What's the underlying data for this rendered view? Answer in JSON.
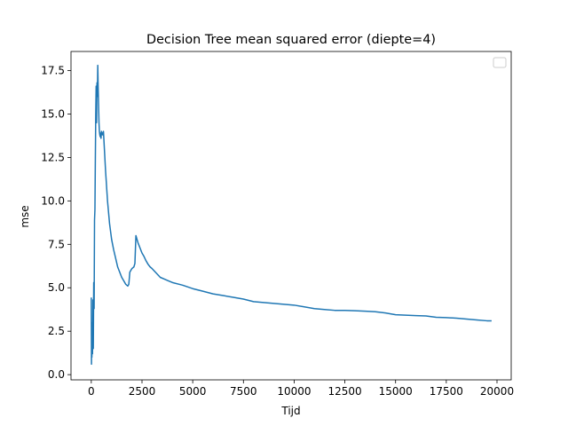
{
  "chart_data": {
    "type": "line",
    "title": "Decision Tree mean squared error (diepte=4)",
    "xlabel": "Tijd",
    "ylabel": "mse",
    "xlim": [
      -1000,
      20700
    ],
    "ylim": [
      -0.3,
      18.6
    ],
    "xticks": [
      0,
      2500,
      5000,
      7500,
      10000,
      12500,
      15000,
      17500,
      20000
    ],
    "xtick_labels": [
      "0",
      "2500",
      "5000",
      "7500",
      "10000",
      "12500",
      "15000",
      "17500",
      "20000"
    ],
    "yticks": [
      0.0,
      2.5,
      5.0,
      7.5,
      10.0,
      12.5,
      15.0,
      17.5
    ],
    "ytick_labels": [
      "0.0",
      "2.5",
      "5.0",
      "7.5",
      "10.0",
      "12.5",
      "15.0",
      "17.5"
    ],
    "grid": false,
    "legend": {
      "placement": "top-right",
      "entries": []
    },
    "line_color": "#1f77b4",
    "series": [
      {
        "x": [
          0,
          10,
          20,
          30,
          40,
          60,
          80,
          100,
          120,
          140,
          160,
          180,
          200,
          220,
          240,
          260,
          280,
          300,
          320,
          340,
          360,
          380,
          400,
          420,
          440,
          460,
          480,
          500,
          550,
          600,
          700,
          800,
          900,
          1000,
          1100,
          1200,
          1300,
          1400,
          1500,
          1600,
          1700,
          1800,
          1850,
          1900,
          1950,
          2000,
          2050,
          2100,
          2150,
          2200,
          2250,
          2300,
          2400,
          2500,
          2600,
          2700,
          2800,
          2900,
          3000,
          3200,
          3400,
          3600,
          3800,
          4000,
          4500,
          5000,
          5500,
          6000,
          6500,
          7000,
          7500,
          8000,
          8500,
          9000,
          9500,
          10000,
          10500,
          11000,
          11500,
          12000,
          12500,
          13000,
          13500,
          14000,
          14500,
          15000,
          15500,
          16000,
          16500,
          17000,
          17500,
          18000,
          18500,
          19000,
          19500,
          19700
        ],
        "y": [
          4.4,
          0.6,
          2.5,
          1.0,
          3.0,
          1.2,
          4.3,
          1.5,
          5.3,
          3.8,
          8.9,
          9.5,
          12.4,
          15.0,
          16.6,
          14.5,
          16.8,
          16.0,
          17.8,
          16.5,
          15.5,
          14.5,
          14.0,
          13.8,
          13.7,
          13.9,
          13.6,
          14.0,
          13.8,
          14.0,
          11.8,
          10.0,
          8.7,
          7.8,
          7.2,
          6.7,
          6.2,
          5.9,
          5.6,
          5.4,
          5.2,
          5.1,
          5.2,
          5.9,
          6.0,
          6.1,
          6.15,
          6.2,
          6.4,
          8.0,
          7.8,
          7.6,
          7.3,
          7.0,
          6.8,
          6.55,
          6.35,
          6.2,
          6.1,
          5.85,
          5.6,
          5.5,
          5.4,
          5.3,
          5.15,
          4.95,
          4.8,
          4.65,
          4.55,
          4.45,
          4.35,
          4.2,
          4.15,
          4.1,
          4.05,
          4.0,
          3.9,
          3.8,
          3.75,
          3.7,
          3.7,
          3.68,
          3.65,
          3.62,
          3.55,
          3.45,
          3.42,
          3.4,
          3.38,
          3.3,
          3.28,
          3.25,
          3.2,
          3.15,
          3.1,
          3.1
        ]
      }
    ]
  }
}
